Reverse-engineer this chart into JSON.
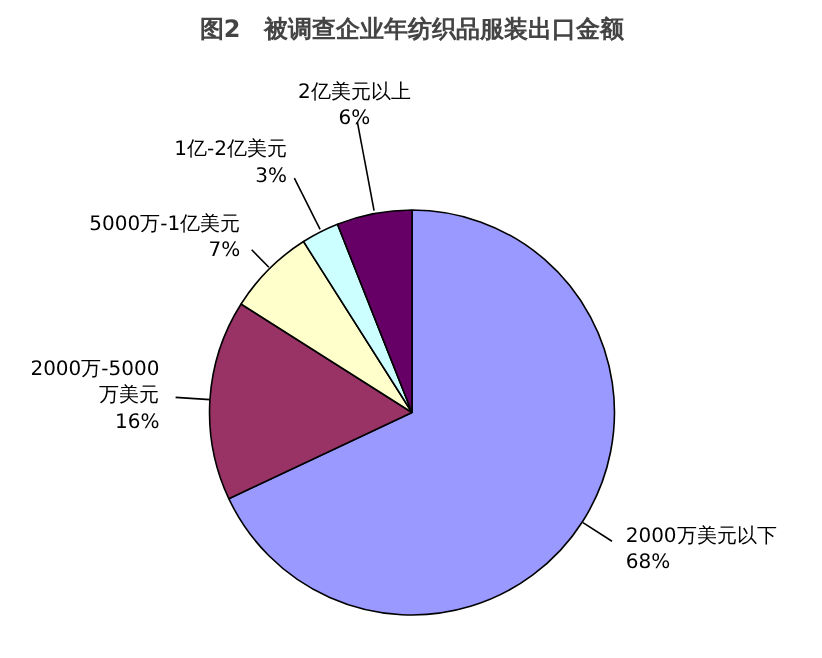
{
  "chart_data": {
    "type": "pie",
    "title": "图2　被调查企业年纺织品服装出口金额",
    "categories": [
      "2000万美元以下",
      "2000万-5000万美元",
      "5000万-1亿美元",
      "1亿-2亿美元",
      "2亿美元以上"
    ],
    "values": [
      68,
      16,
      7,
      3,
      6
    ],
    "colors": [
      "#9999ff",
      "#993366",
      "#ffffcc",
      "#ccffff",
      "#660066"
    ],
    "value_labels": [
      "68%",
      "16%",
      "7%",
      "3%",
      "6%"
    ]
  }
}
